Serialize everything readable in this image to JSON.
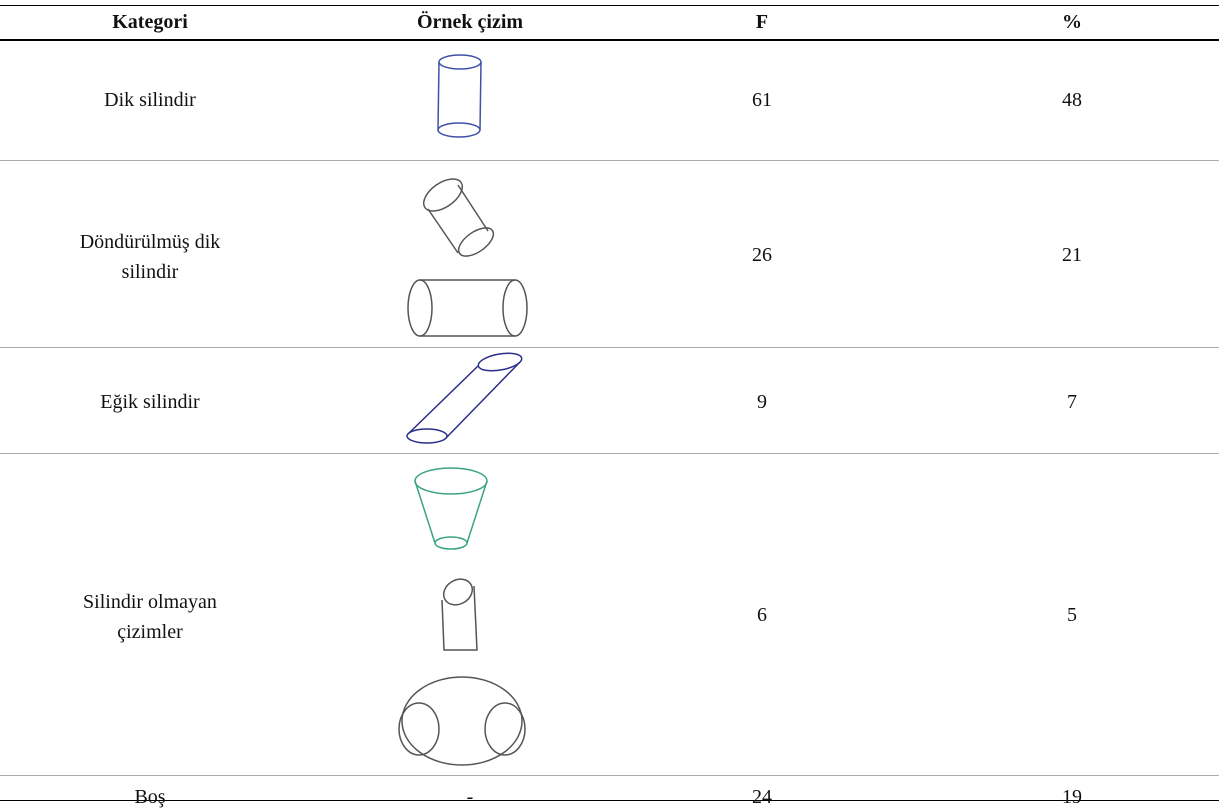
{
  "table": {
    "headers": [
      "Kategori",
      "Örnek çizim",
      "F",
      "%"
    ],
    "rows": [
      [
        "Dik silindir",
        61,
        48
      ],
      [
        "Döndürülmüş dik silindir",
        26,
        21
      ],
      [
        "Eğik silindir",
        9,
        7
      ],
      [
        "Silindir olmayan çizimler",
        6,
        5
      ],
      [
        "Boş",
        "-",
        24,
        19
      ]
    ]
  }
}
